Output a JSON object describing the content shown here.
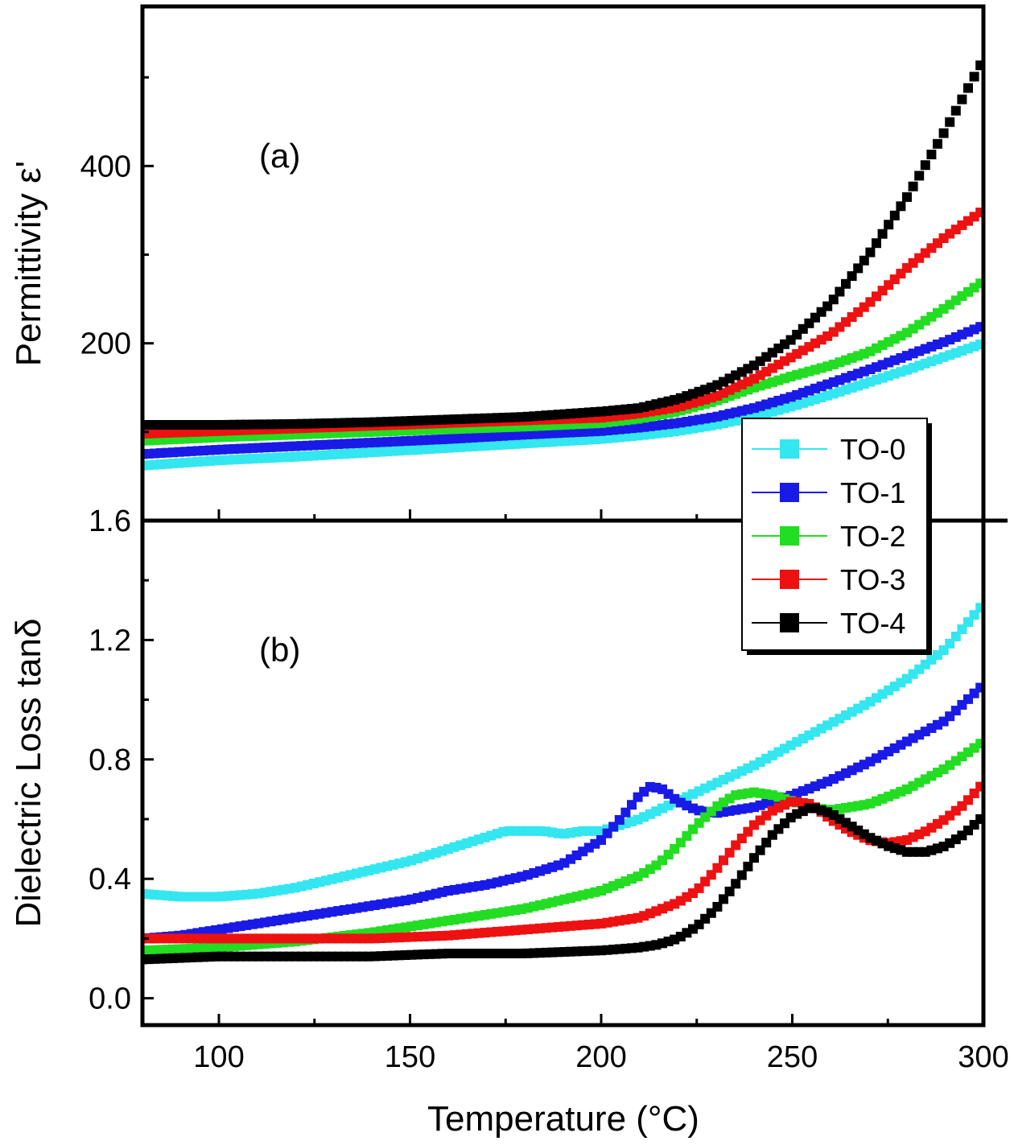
{
  "chart_data": {
    "type": "scatter",
    "x_axis": {
      "label": "Temperature (°C)",
      "range": [
        80,
        300
      ],
      "ticks": [
        100,
        150,
        200,
        250,
        300
      ],
      "tick_labels": [
        "100",
        "150",
        "200",
        "250",
        "300"
      ]
    },
    "panels": [
      {
        "panel_label": "(a)",
        "ylabel": "Permittivity ε'",
        "ylim": [
          0,
          580
        ],
        "y_ticks": [
          200,
          400
        ],
        "y_tick_labels": [
          "200",
          "400"
        ]
      },
      {
        "panel_label": "(b)",
        "ylabel": "Dielectric Loss tanδ",
        "ylim": [
          -0.09,
          1.6
        ],
        "y_ticks": [
          0.0,
          0.4,
          0.8,
          1.2,
          1.6
        ],
        "y_tick_labels": [
          "0.0",
          "0.4",
          "0.8",
          "1.2",
          "1.6"
        ]
      }
    ],
    "legend_position": "right, between panels",
    "grid": false,
    "series": [
      {
        "name": "TO-0",
        "color": "#33e6f0",
        "permittivity": {
          "x": [
            80,
            100,
            120,
            140,
            160,
            180,
            200,
            210,
            220,
            230,
            240,
            250,
            260,
            270,
            280,
            290,
            300
          ],
          "y": [
            62,
            68,
            72,
            77,
            82,
            87,
            92,
            96,
            101,
            108,
            117,
            129,
            142,
            156,
            170,
            185,
            200
          ]
        },
        "loss": {
          "x": [
            80,
            90,
            100,
            110,
            120,
            130,
            140,
            150,
            160,
            170,
            175,
            180,
            185,
            190,
            195,
            200,
            205,
            210,
            215,
            220,
            230,
            240,
            250,
            260,
            270,
            280,
            290,
            300
          ],
          "y": [
            0.35,
            0.34,
            0.34,
            0.35,
            0.37,
            0.4,
            0.43,
            0.46,
            0.5,
            0.54,
            0.56,
            0.56,
            0.56,
            0.55,
            0.56,
            0.56,
            0.58,
            0.6,
            0.63,
            0.66,
            0.72,
            0.78,
            0.85,
            0.92,
            0.99,
            1.07,
            1.17,
            1.32
          ]
        }
      },
      {
        "name": "TO-1",
        "color": "#1a1ae6",
        "permittivity": {
          "x": [
            80,
            100,
            120,
            140,
            160,
            180,
            200,
            210,
            220,
            230,
            240,
            250,
            260,
            270,
            280,
            290,
            300
          ],
          "y": [
            75,
            80,
            84,
            88,
            92,
            97,
            101,
            105,
            110,
            117,
            127,
            140,
            155,
            170,
            186,
            202,
            220
          ]
        },
        "loss": {
          "x": [
            80,
            90,
            100,
            110,
            120,
            130,
            140,
            150,
            160,
            170,
            180,
            190,
            195,
            200,
            205,
            210,
            213,
            216,
            220,
            225,
            230,
            235,
            240,
            250,
            260,
            270,
            280,
            290,
            300
          ],
          "y": [
            0.2,
            0.21,
            0.23,
            0.25,
            0.27,
            0.29,
            0.31,
            0.33,
            0.36,
            0.38,
            0.41,
            0.45,
            0.49,
            0.53,
            0.6,
            0.68,
            0.71,
            0.7,
            0.66,
            0.63,
            0.62,
            0.63,
            0.64,
            0.68,
            0.73,
            0.79,
            0.86,
            0.93,
            1.05
          ]
        }
      },
      {
        "name": "TO-2",
        "color": "#22dd22",
        "permittivity": {
          "x": [
            80,
            100,
            120,
            140,
            160,
            180,
            200,
            210,
            220,
            230,
            240,
            250,
            260,
            270,
            280,
            290,
            300
          ],
          "y": [
            90,
            94,
            97,
            100,
            103,
            106,
            110,
            115,
            123,
            135,
            150,
            163,
            175,
            190,
            212,
            240,
            270
          ]
        },
        "loss": {
          "x": [
            80,
            100,
            120,
            140,
            160,
            180,
            190,
            200,
            210,
            215,
            220,
            225,
            230,
            235,
            240,
            245,
            250,
            255,
            260,
            270,
            280,
            290,
            300
          ],
          "y": [
            0.16,
            0.17,
            0.19,
            0.22,
            0.26,
            0.3,
            0.33,
            0.36,
            0.41,
            0.45,
            0.51,
            0.58,
            0.64,
            0.68,
            0.69,
            0.68,
            0.66,
            0.64,
            0.63,
            0.65,
            0.7,
            0.77,
            0.86
          ]
        }
      },
      {
        "name": "TO-3",
        "color": "#ee1111",
        "permittivity": {
          "x": [
            80,
            100,
            120,
            140,
            160,
            180,
            200,
            210,
            220,
            230,
            240,
            250,
            260,
            270,
            280,
            290,
            300
          ],
          "y": [
            98,
            101,
            104,
            107,
            110,
            113,
            116,
            121,
            128,
            140,
            160,
            185,
            210,
            245,
            285,
            320,
            350
          ]
        },
        "loss": {
          "x": [
            80,
            100,
            120,
            140,
            160,
            180,
            200,
            210,
            220,
            225,
            230,
            235,
            240,
            245,
            250,
            255,
            260,
            265,
            270,
            275,
            280,
            285,
            290,
            295,
            300
          ],
          "y": [
            0.2,
            0.2,
            0.2,
            0.2,
            0.21,
            0.23,
            0.25,
            0.27,
            0.32,
            0.36,
            0.43,
            0.51,
            0.58,
            0.63,
            0.66,
            0.65,
            0.6,
            0.56,
            0.53,
            0.52,
            0.53,
            0.56,
            0.6,
            0.65,
            0.72
          ]
        }
      },
      {
        "name": "TO-4",
        "color": "#000000",
        "permittivity": {
          "x": [
            80,
            100,
            120,
            140,
            160,
            180,
            200,
            210,
            220,
            230,
            240,
            250,
            260,
            270,
            280,
            290,
            300
          ],
          "y": [
            108,
            108,
            109,
            111,
            114,
            117,
            123,
            127,
            137,
            152,
            175,
            205,
            245,
            300,
            365,
            440,
            520
          ]
        },
        "loss": {
          "x": [
            80,
            100,
            120,
            140,
            160,
            180,
            200,
            210,
            215,
            220,
            225,
            230,
            235,
            240,
            245,
            250,
            255,
            260,
            265,
            270,
            275,
            280,
            285,
            290,
            295,
            300
          ],
          "y": [
            0.13,
            0.14,
            0.14,
            0.14,
            0.15,
            0.15,
            0.16,
            0.17,
            0.18,
            0.2,
            0.24,
            0.3,
            0.38,
            0.47,
            0.55,
            0.61,
            0.64,
            0.62,
            0.58,
            0.54,
            0.51,
            0.49,
            0.49,
            0.51,
            0.55,
            0.61
          ]
        }
      }
    ]
  }
}
